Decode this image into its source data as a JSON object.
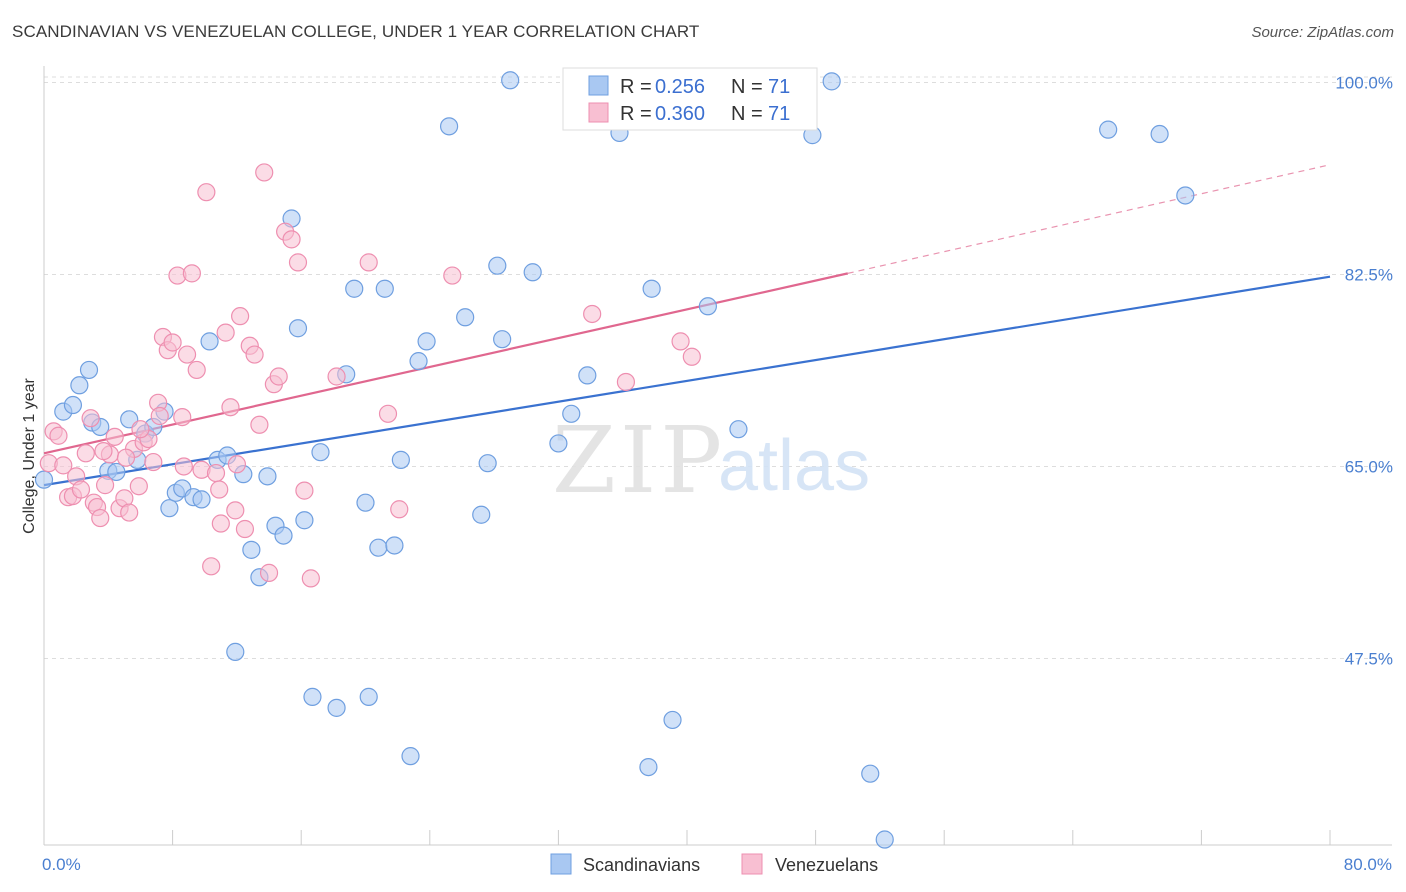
{
  "title": "SCANDINAVIAN VS VENEZUELAN COLLEGE, UNDER 1 YEAR CORRELATION CHART",
  "source": "Source: ZipAtlas.com",
  "watermark": {
    "zip": "ZIP",
    "atlas": "atlas"
  },
  "colors": {
    "blue_fill": "#a9c8f2",
    "blue_stroke": "#6f9fe0",
    "blue_line": "#3a72d0",
    "pink_fill": "#f8bfd2",
    "pink_stroke": "#ee8fb0",
    "pink_line": "#e0678f",
    "grid": "#dddddd",
    "axis_text": "#4a7fd0"
  },
  "legend": {
    "rows": [
      {
        "r_label": "R =",
        "r_value": "0.256",
        "n_label": "N =",
        "n_value": "71"
      },
      {
        "r_label": "R =",
        "r_value": "0.360",
        "n_label": "N =",
        "n_value": "71"
      }
    ]
  },
  "chart_data": {
    "type": "scatter",
    "title": "SCANDINAVIAN VS VENEZUELAN COLLEGE, UNDER 1 YEAR CORRELATION CHART",
    "xlabel": "",
    "ylabel": "College, Under 1 year",
    "xlim": [
      0,
      80
    ],
    "ylim": [
      30.5,
      101.5
    ],
    "x_tick_labels": [
      "0.0%",
      "80.0%"
    ],
    "y_ticks": [
      47.5,
      65.0,
      82.5,
      100.0
    ],
    "y_tick_labels": [
      "47.5%",
      "65.0%",
      "82.5%",
      "100.0%"
    ],
    "series": [
      {
        "name": "Scandinavians",
        "trend": {
          "x0": 0,
          "y0": 63.3,
          "x1": 80,
          "y1": 82.3,
          "dashed_to": null
        },
        "points": [
          [
            0.0,
            63.8
          ],
          [
            1.2,
            70.0
          ],
          [
            1.8,
            70.6
          ],
          [
            2.2,
            72.4
          ],
          [
            2.8,
            73.8
          ],
          [
            3.0,
            69.0
          ],
          [
            3.5,
            68.6
          ],
          [
            4.0,
            64.6
          ],
          [
            4.5,
            64.5
          ],
          [
            5.3,
            69.3
          ],
          [
            5.8,
            65.6
          ],
          [
            6.3,
            68.0
          ],
          [
            6.8,
            68.6
          ],
          [
            7.5,
            70.0
          ],
          [
            7.8,
            61.2
          ],
          [
            8.2,
            62.6
          ],
          [
            8.6,
            63.0
          ],
          [
            9.3,
            62.2
          ],
          [
            9.8,
            62.0
          ],
          [
            10.3,
            76.4
          ],
          [
            10.8,
            65.6
          ],
          [
            11.4,
            66.0
          ],
          [
            11.9,
            48.1
          ],
          [
            12.4,
            64.3
          ],
          [
            12.9,
            57.4
          ],
          [
            13.4,
            54.9
          ],
          [
            13.9,
            64.1
          ],
          [
            14.4,
            59.6
          ],
          [
            14.9,
            58.7
          ],
          [
            15.4,
            87.6
          ],
          [
            15.8,
            77.6
          ],
          [
            16.2,
            60.1
          ],
          [
            16.7,
            44.0
          ],
          [
            17.2,
            66.3
          ],
          [
            18.2,
            43.0
          ],
          [
            18.8,
            73.4
          ],
          [
            19.3,
            81.2
          ],
          [
            20.0,
            61.7
          ],
          [
            20.2,
            44.0
          ],
          [
            20.8,
            57.6
          ],
          [
            21.2,
            81.2
          ],
          [
            21.8,
            57.8
          ],
          [
            22.2,
            65.6
          ],
          [
            22.8,
            38.6
          ],
          [
            23.3,
            74.6
          ],
          [
            23.8,
            76.4
          ],
          [
            25.2,
            96.0
          ],
          [
            26.2,
            78.6
          ],
          [
            27.2,
            60.6
          ],
          [
            27.6,
            65.3
          ],
          [
            28.2,
            83.3
          ],
          [
            28.5,
            76.6
          ],
          [
            29.0,
            100.2
          ],
          [
            30.4,
            82.7
          ],
          [
            32.0,
            67.1
          ],
          [
            32.8,
            69.8
          ],
          [
            33.8,
            73.3
          ],
          [
            35.8,
            95.4
          ],
          [
            37.6,
            37.6
          ],
          [
            37.8,
            81.2
          ],
          [
            39.1,
            41.9
          ],
          [
            41.3,
            79.6
          ],
          [
            43.2,
            68.4
          ],
          [
            47.8,
            95.2
          ],
          [
            51.4,
            37.0
          ],
          [
            52.3,
            31.0
          ],
          [
            66.2,
            95.7
          ],
          [
            69.4,
            95.3
          ],
          [
            71.0,
            89.7
          ],
          [
            49.0,
            100.1
          ],
          [
            44.9,
            100.1
          ]
        ]
      },
      {
        "name": "Venezuelans",
        "trend": {
          "x0": 0,
          "y0": 66.2,
          "x1": 50,
          "y1": 82.6,
          "dashed_to": [
            80,
            92.5
          ]
        },
        "points": [
          [
            0.3,
            65.3
          ],
          [
            0.6,
            68.2
          ],
          [
            0.9,
            67.8
          ],
          [
            1.2,
            65.1
          ],
          [
            1.5,
            62.2
          ],
          [
            1.8,
            62.3
          ],
          [
            2.0,
            64.1
          ],
          [
            2.3,
            62.9
          ],
          [
            2.6,
            66.2
          ],
          [
            2.9,
            69.4
          ],
          [
            3.1,
            61.7
          ],
          [
            3.3,
            61.3
          ],
          [
            3.5,
            60.3
          ],
          [
            3.8,
            63.3
          ],
          [
            4.1,
            66.1
          ],
          [
            4.4,
            67.7
          ],
          [
            4.7,
            61.2
          ],
          [
            5.0,
            62.1
          ],
          [
            5.3,
            60.8
          ],
          [
            5.6,
            66.6
          ],
          [
            5.9,
            63.2
          ],
          [
            6.2,
            67.2
          ],
          [
            6.5,
            67.5
          ],
          [
            6.8,
            65.4
          ],
          [
            7.1,
            70.8
          ],
          [
            7.4,
            76.8
          ],
          [
            7.7,
            75.6
          ],
          [
            8.0,
            76.3
          ],
          [
            8.3,
            82.4
          ],
          [
            8.6,
            69.5
          ],
          [
            8.9,
            75.2
          ],
          [
            9.2,
            82.6
          ],
          [
            9.5,
            73.8
          ],
          [
            9.8,
            64.7
          ],
          [
            10.1,
            90.0
          ],
          [
            10.4,
            55.9
          ],
          [
            10.7,
            64.4
          ],
          [
            11.0,
            59.8
          ],
          [
            11.3,
            77.2
          ],
          [
            11.6,
            70.4
          ],
          [
            11.9,
            61.0
          ],
          [
            12.2,
            78.7
          ],
          [
            12.5,
            59.3
          ],
          [
            12.8,
            76.0
          ],
          [
            13.1,
            75.2
          ],
          [
            13.4,
            68.8
          ],
          [
            13.7,
            91.8
          ],
          [
            14.0,
            55.3
          ],
          [
            14.3,
            72.5
          ],
          [
            14.6,
            73.2
          ],
          [
            15.0,
            86.4
          ],
          [
            15.4,
            85.7
          ],
          [
            15.8,
            83.6
          ],
          [
            16.2,
            62.8
          ],
          [
            16.6,
            54.8
          ],
          [
            18.2,
            73.2
          ],
          [
            20.2,
            83.6
          ],
          [
            21.4,
            69.8
          ],
          [
            22.1,
            61.1
          ],
          [
            25.4,
            82.4
          ],
          [
            34.1,
            78.9
          ],
          [
            36.2,
            72.7
          ],
          [
            39.6,
            76.4
          ],
          [
            40.3,
            75.0
          ],
          [
            3.7,
            66.4
          ],
          [
            5.1,
            65.8
          ],
          [
            6.0,
            68.4
          ],
          [
            7.2,
            69.6
          ],
          [
            8.7,
            65.0
          ],
          [
            10.9,
            62.9
          ],
          [
            12.0,
            65.2
          ]
        ]
      }
    ]
  },
  "bottom_legend": {
    "items": [
      "Scandinavians",
      "Venezuelans"
    ]
  }
}
